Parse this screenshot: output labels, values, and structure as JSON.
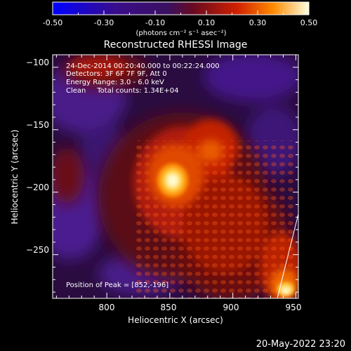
{
  "colorbar": {
    "ticks": [
      "-0.50",
      "-0.30",
      "-0.10",
      "0.10",
      "0.30",
      "0.50"
    ],
    "unit": "(photons cm⁻² s⁻¹ asec⁻²)"
  },
  "title": "Reconstructed RHESSI Image",
  "info": {
    "line1": "24-Dec-2014 00:20:40.000 to 00:22:24.000",
    "line2": "Detectors: 3F 6F 7F 9F, Att 0",
    "line3": "Energy Range: 3.0 - 6.0 keV",
    "line4": "Clean     Total counts: 1.34E+04"
  },
  "peak": "Position of Peak = [852,-196]",
  "axes": {
    "xlabel": "Heliocentric X (arcsec)",
    "ylabel": "Heliocentric Y (arcsec)",
    "xticks": [
      "800",
      "850",
      "900",
      "950"
    ],
    "yticks": [
      "−100",
      "−150",
      "−200",
      "−250"
    ],
    "xlim": [
      757,
      952
    ],
    "ylim": [
      -285,
      -90
    ]
  },
  "timestamp": "20-May-2022 23:20",
  "colors": {
    "background": "#000000",
    "axis": "#ffffff"
  }
}
